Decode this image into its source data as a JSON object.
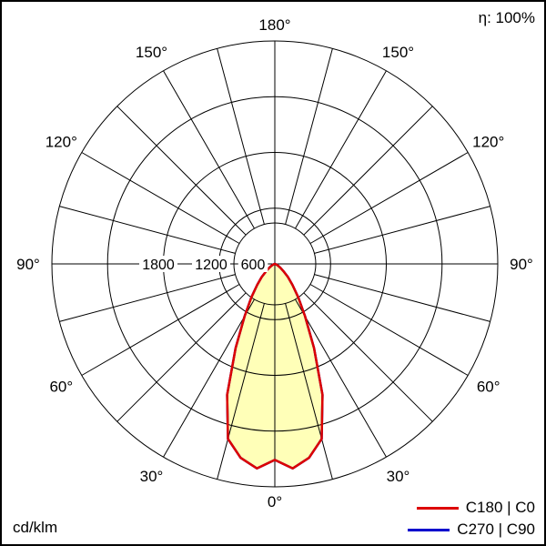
{
  "header": {
    "efficiency": "η: 100%"
  },
  "footer": {
    "unit": "cd/klm"
  },
  "legend": {
    "items": [
      {
        "label": "C180 | C0",
        "color": "#dd0000"
      },
      {
        "label": "C270 | C90",
        "color": "#0000cd"
      }
    ]
  },
  "chart_data": {
    "type": "polar",
    "unit": "cd/klm",
    "efficiency_percent": 100,
    "rmax": 2400,
    "ring_values": [
      600,
      1200,
      1800,
      2400
    ],
    "ring_axis_labels": [
      "1800",
      "1200",
      "600"
    ],
    "angle_grid_step_deg": 15,
    "angle_labels_deg": [
      0,
      30,
      60,
      90,
      120,
      150,
      180
    ],
    "gamma_deg": [
      0,
      5,
      10,
      15,
      20,
      25,
      30,
      35,
      40,
      45,
      50,
      55,
      60,
      65,
      70,
      75,
      80,
      85,
      90
    ],
    "series": [
      {
        "name": "C180 | C0",
        "color": "#dd0000",
        "symmetric": true,
        "values": [
          2110,
          2210,
          2120,
          1950,
          1500,
          1000,
          650,
          440,
          295,
          200,
          120,
          75,
          45,
          25,
          12,
          6,
          3,
          1,
          0
        ]
      },
      {
        "name": "C270 | C90",
        "color": "#0000cd",
        "symmetric": true,
        "values": [
          2110,
          2210,
          2120,
          1950,
          1500,
          1000,
          650,
          440,
          295,
          200,
          120,
          75,
          45,
          25,
          12,
          6,
          3,
          1,
          0
        ]
      }
    ],
    "fill_color": "#ffffb8",
    "grid_color": "#000000",
    "legend_position": "bottom-right"
  }
}
